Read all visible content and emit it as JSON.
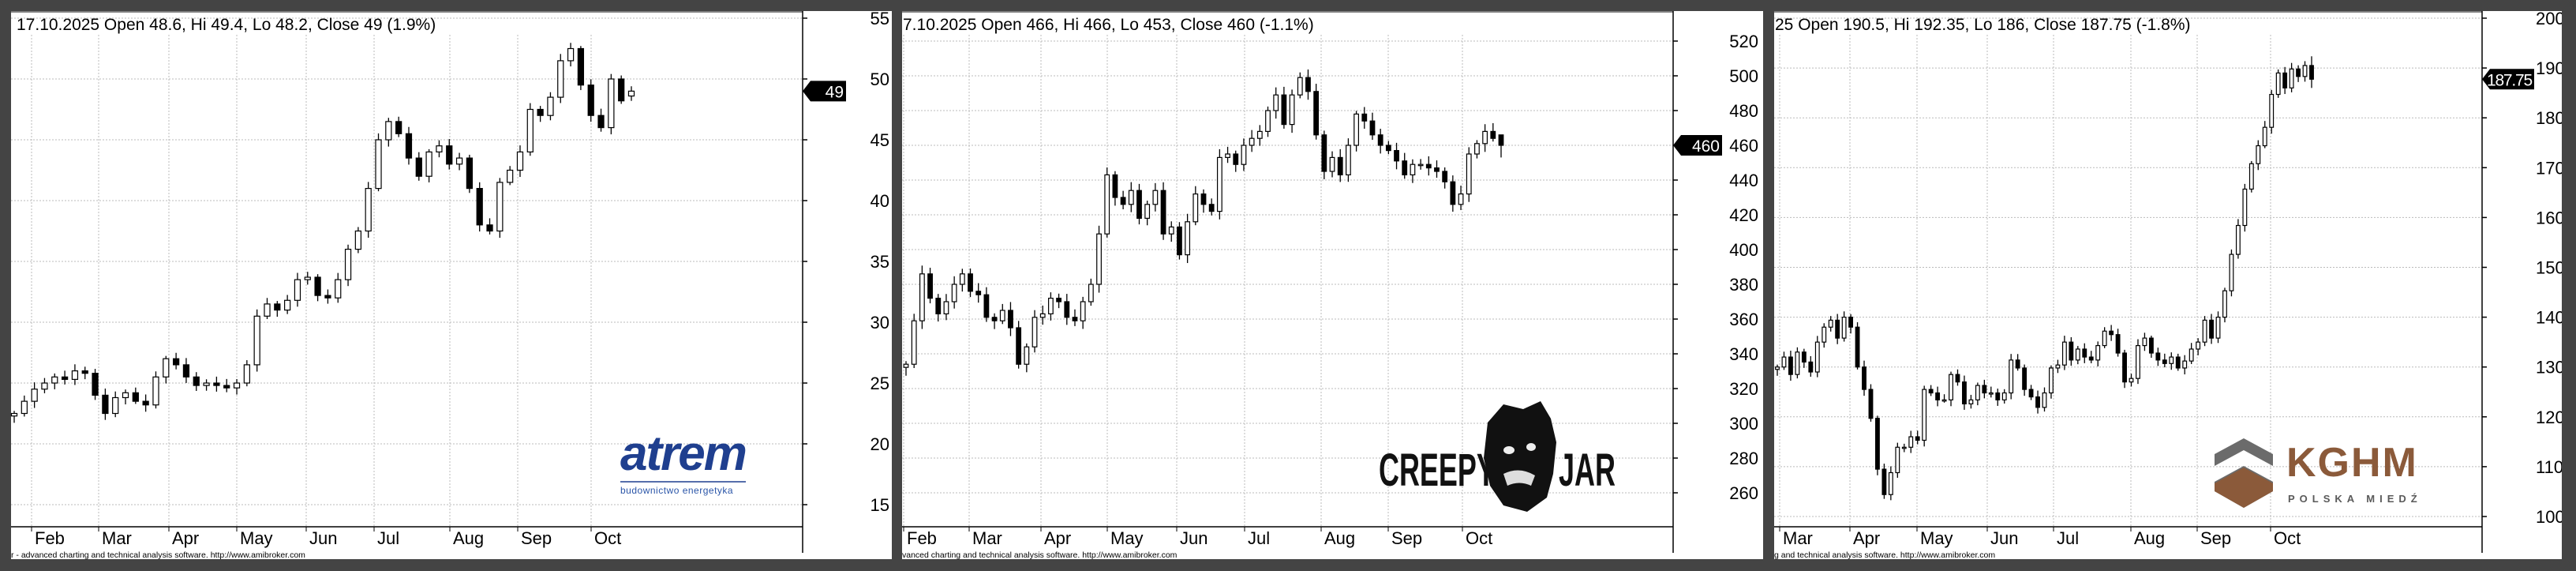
{
  "panels": [
    {
      "id": "atrem",
      "header": "17.10.2025 Open 48.6, Hi 49.4, Lo 48.2, Close 49 (1.9%)",
      "footer": "r - advanced charting and technical analysis software. http://www.amibroker.com",
      "last_tag": "49",
      "logo": {
        "name": "atrem",
        "tagline": "budownictwo energetyka",
        "color": "#1f3f8f"
      },
      "chart_data": {
        "type": "candlestick",
        "months": [
          "Feb",
          "Mar",
          "Apr",
          "May",
          "Jun",
          "Jul",
          "Aug",
          "Sep",
          "Oct"
        ],
        "y_ticks": [
          "55",
          "50",
          "45",
          "40",
          "35",
          "30",
          "25",
          "20",
          "15"
        ],
        "ylim": [
          13.3,
          55.5
        ],
        "grid": true,
        "last": {
          "date": "17.10.2025",
          "open": 48.6,
          "high": 49.4,
          "low": 48.2,
          "close": 49
        },
        "close": [
          22.5,
          23.5,
          24.5,
          25,
          25.5,
          25.3,
          26,
          25.8,
          24,
          22.5,
          23.8,
          24.2,
          23.5,
          23.2,
          25.5,
          27,
          26.5,
          25.5,
          24.8,
          25,
          24.8,
          24.6,
          25,
          26.5,
          30.5,
          31.5,
          31,
          31.8,
          33.5,
          33.7,
          32.2,
          32,
          33.5,
          36,
          37.5,
          41,
          45,
          46.5,
          45.5,
          43.5,
          42,
          44,
          44.5,
          43,
          43.5,
          41,
          38,
          37.5,
          41.5,
          42.5,
          44,
          47.5,
          47,
          48.5,
          51.5,
          52.5,
          49.5,
          47,
          46,
          50,
          48.2,
          49
        ]
      }
    },
    {
      "id": "creepyjar",
      "header": "7.10.2025 Open 466, Hi 466, Lo 453, Close 460 (-1.1%)",
      "footer": "vanced charting and technical analysis software. http://www.amibroker.com",
      "last_tag": "460",
      "logo": {
        "name": "CREEPY JAR",
        "left": "CREEPY",
        "right": "JAR",
        "color": "#111111"
      },
      "chart_data": {
        "type": "candlestick",
        "months": [
          "Feb",
          "Mar",
          "Apr",
          "May",
          "Jun",
          "Jul",
          "Aug",
          "Sep",
          "Oct"
        ],
        "y_ticks": [
          "520",
          "500",
          "480",
          "460",
          "440",
          "420",
          "400",
          "380",
          "360",
          "340",
          "320",
          "300",
          "280",
          "260"
        ],
        "ylim": [
          240,
          540
        ],
        "grid": true,
        "last": {
          "open": 466,
          "high": 466,
          "low": 453,
          "close": 460
        },
        "close": [
          334,
          359,
          386,
          372,
          363,
          370,
          380,
          386,
          376,
          374,
          361,
          359,
          365,
          355,
          334,
          344,
          361,
          363,
          372,
          370,
          361,
          359,
          370,
          380,
          409,
          443,
          430,
          426,
          434,
          418,
          426,
          434,
          409,
          413,
          397,
          416,
          432,
          426,
          422,
          453,
          455,
          449,
          460,
          464,
          468,
          480,
          489,
          472,
          489,
          499,
          491,
          466,
          445,
          453,
          443,
          460,
          478,
          474,
          466,
          460,
          457,
          451,
          443,
          449,
          449,
          447,
          445,
          439,
          426,
          432,
          455,
          461,
          468,
          464,
          460
        ]
      }
    },
    {
      "id": "kghm",
      "header": "25 Open 190.5, Hi 192.35, Lo 186, Close 187.75 (-1.8%)",
      "footer": "g and technical analysis software. http://www.amibroker.com",
      "last_tag": "187.75",
      "logo": {
        "name": "KGHM",
        "tagline": "POLSKA MIEDŹ",
        "color": "#8b5a3a",
        "gray": "#5a5a5a"
      },
      "chart_data": {
        "type": "candlestick",
        "months": [
          "Mar",
          "Apr",
          "May",
          "Jun",
          "Jul",
          "Aug",
          "Sep",
          "Oct"
        ],
        "y_ticks": [
          "200",
          "190",
          "180",
          "170",
          "160",
          "150",
          "140",
          "130",
          "120",
          "110",
          "100"
        ],
        "ylim": [
          98,
          200
        ],
        "grid": true,
        "last": {
          "open": 190.5,
          "high": 192.35,
          "low": 186,
          "close": 187.75
        },
        "close": [
          130,
          132,
          128.5,
          133,
          131,
          129,
          135,
          138,
          139.4,
          135.8,
          140,
          138,
          130,
          125.5,
          119.7,
          109.5,
          104.4,
          108.8,
          113.9,
          113.9,
          116,
          115.3,
          125.5,
          124.8,
          123.4,
          123.4,
          128.5,
          127,
          122.6,
          123.4,
          126.3,
          124.8,
          124.8,
          123.4,
          124.8,
          131.4,
          129.8,
          125.5,
          124,
          121.9,
          124.8,
          129.8,
          130.4,
          135,
          131.4,
          133.6,
          132,
          131.4,
          134.3,
          137.2,
          136.5,
          132.8,
          127,
          127.7,
          134.3,
          135.8,
          132.8,
          131.4,
          130.7,
          132,
          129.8,
          131.2,
          133.6,
          135,
          139.4,
          135.8,
          140,
          145.3,
          152.6,
          158.4,
          165.7,
          170.8,
          174.4,
          178.1,
          184.7,
          189,
          186,
          189.8,
          188.3,
          190.5,
          187.75
        ]
      }
    }
  ]
}
